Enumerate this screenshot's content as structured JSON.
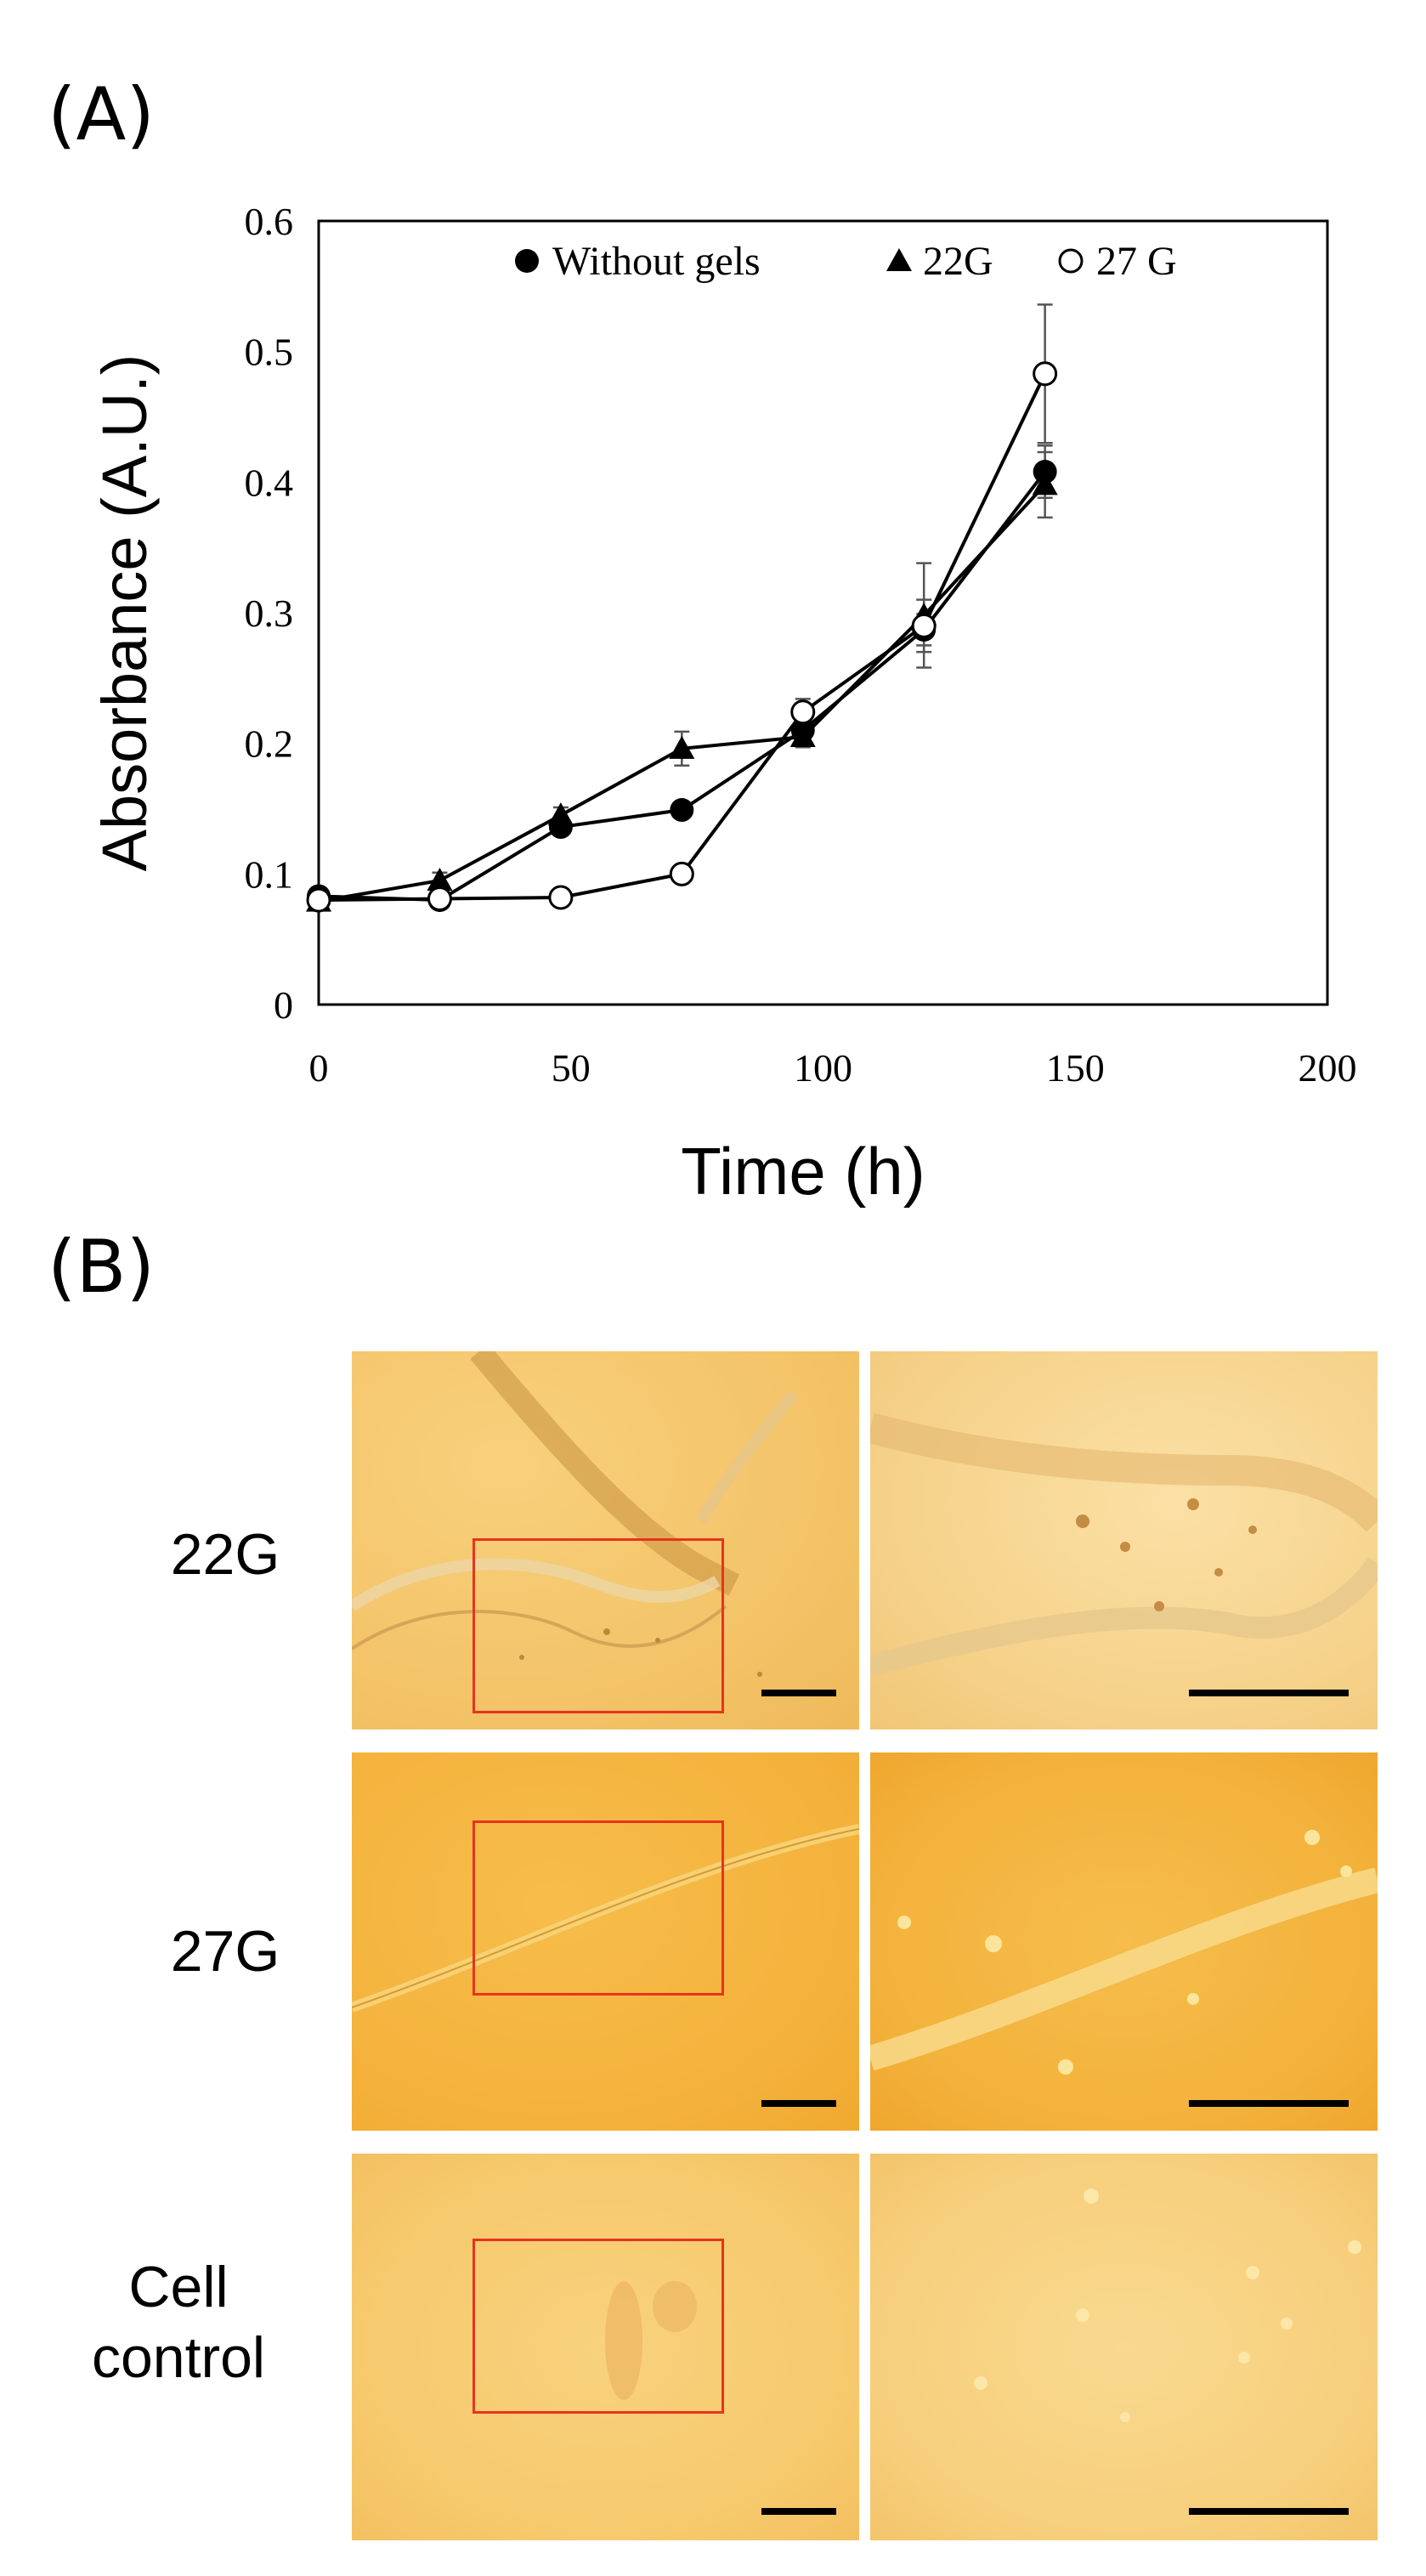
{
  "panel_a_label": "(A)",
  "panel_b_label": "(B)",
  "chart_data": {
    "type": "line",
    "title": "",
    "xlabel": "Time (h)",
    "ylabel": "Absorbance (A.U.)",
    "xlim": [
      0,
      200
    ],
    "ylim": [
      0,
      0.6
    ],
    "xticks": [
      0,
      50,
      100,
      150,
      200
    ],
    "yticks": [
      0,
      0.1,
      0.2,
      0.3,
      0.4,
      0.5,
      0.6
    ],
    "xtick_labels": [
      "0",
      "50",
      "100",
      "150",
      "200"
    ],
    "ytick_labels": [
      "0",
      "0.1",
      "0.2",
      "0.3",
      "0.4",
      "0.5",
      "0.6"
    ],
    "grid": false,
    "legend_position": "top",
    "x": [
      0,
      24,
      48,
      72,
      96,
      120,
      144
    ],
    "series": [
      {
        "name": "Without gels",
        "marker": "filled-circle",
        "values": [
          0.083,
          0.08,
          0.136,
          0.149,
          0.21,
          0.287,
          0.408
        ],
        "errors": [
          0.004,
          0.004,
          0.004,
          0.004,
          0.006,
          0.012,
          0.02
        ]
      },
      {
        "name": "22G",
        "marker": "filled-triangle",
        "values": [
          0.079,
          0.095,
          0.145,
          0.196,
          0.205,
          0.298,
          0.398
        ],
        "errors": [
          0.004,
          0.006,
          0.006,
          0.013,
          0.008,
          0.04,
          0.025
        ]
      },
      {
        "name": "27 G",
        "marker": "open-circle",
        "values": [
          0.08,
          0.081,
          0.082,
          0.1,
          0.224,
          0.29,
          0.483
        ],
        "errors": [
          0.003,
          0.003,
          0.003,
          0.004,
          0.01,
          0.02,
          0.053
        ]
      }
    ]
  },
  "micrographs": {
    "rows": [
      {
        "label": "22G"
      },
      {
        "label": "27G"
      },
      {
        "label_line1": "Cell",
        "label_line2": "control"
      }
    ],
    "colors": {
      "background_22g": "#f6c76a",
      "background_27g": "#f5b53e",
      "background_control": "#f8cd78",
      "roi": "#e8331f"
    }
  }
}
